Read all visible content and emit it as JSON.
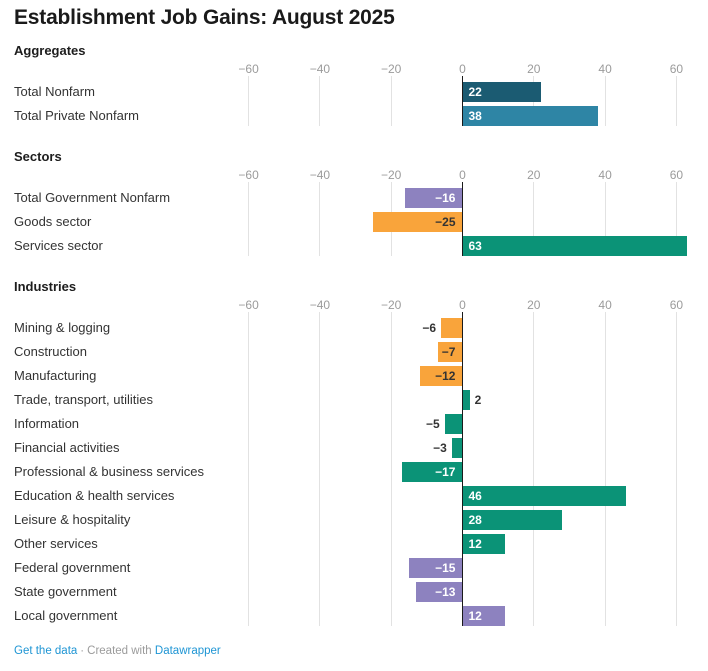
{
  "title": "Establishment Job Gains: August 2025",
  "footer": {
    "link_label": "Get the data",
    "separator": "·",
    "credit_prefix": "Created with",
    "credit_brand": "Datawrapper"
  },
  "colors": {
    "dark_blue": "#1b5b72",
    "blue": "#2e85a5",
    "purple": "#8d82bf",
    "orange": "#f9a43b",
    "green": "#0b9377",
    "axis_label": "#9b9b9b",
    "gridline": "#e2e2e2",
    "zero_line": "#1a1a1a",
    "label_dark": "#333333",
    "label_light": "#ffffff",
    "link_blue": "#1e95d4",
    "text_dark": "#1d1d1d"
  },
  "chart_data": {
    "type": "bar",
    "orientation": "horizontal",
    "title": "Establishment Job Gains: August 2025",
    "x_ticks": [
      -60,
      -40,
      -20,
      0,
      20,
      40,
      60
    ],
    "x_range": [
      -62.5,
      66.5
    ],
    "grid": true,
    "legend": "none",
    "sections": [
      {
        "label": "Aggregates",
        "rows": [
          {
            "label": "Total Nonfarm",
            "value": 22,
            "color": "dark_blue"
          },
          {
            "label": "Total Private Nonfarm",
            "value": 38,
            "color": "blue"
          }
        ]
      },
      {
        "label": "Sectors",
        "rows": [
          {
            "label": "Total Government Nonfarm",
            "value": -16,
            "color": "purple"
          },
          {
            "label": "Goods sector",
            "value": -25,
            "color": "orange"
          },
          {
            "label": "Services sector",
            "value": 63,
            "color": "green"
          }
        ]
      },
      {
        "label": "Industries",
        "rows": [
          {
            "label": "Mining & logging",
            "value": -6,
            "color": "orange"
          },
          {
            "label": "Construction",
            "value": -7,
            "color": "orange"
          },
          {
            "label": "Manufacturing",
            "value": -12,
            "color": "orange"
          },
          {
            "label": "Trade, transport, utilities",
            "value": 2,
            "color": "green"
          },
          {
            "label": "Information",
            "value": -5,
            "color": "green"
          },
          {
            "label": "Financial activities",
            "value": -3,
            "color": "green"
          },
          {
            "label": "Professional & business services",
            "value": -17,
            "color": "green"
          },
          {
            "label": "Education & health services",
            "value": 46,
            "color": "green"
          },
          {
            "label": "Leisure & hospitality",
            "value": 28,
            "color": "green"
          },
          {
            "label": "Other services",
            "value": 12,
            "color": "green"
          },
          {
            "label": "Federal government",
            "value": -15,
            "color": "purple"
          },
          {
            "label": "State government",
            "value": -13,
            "color": "purple"
          },
          {
            "label": "Local government",
            "value": 12,
            "color": "purple"
          }
        ]
      }
    ]
  }
}
